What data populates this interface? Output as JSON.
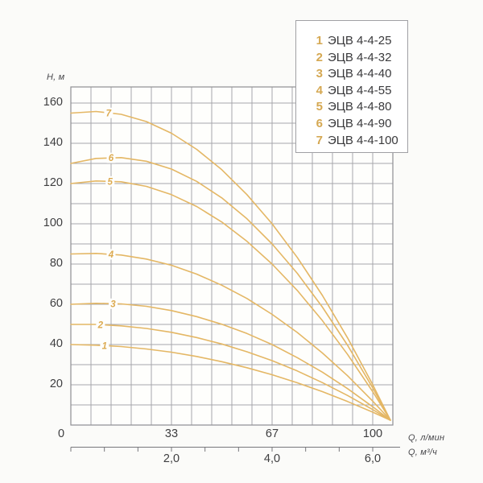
{
  "colors": {
    "background": "#fbfbf9",
    "plot_fill": "#fefefc",
    "curve": "#e4b765",
    "curve_label": "#dcaa50",
    "grid": "#a6a6ab",
    "frame": "#8e8e93",
    "axis_line": "#77777c",
    "text": "#3e3e40",
    "legend_number": "#d5a852",
    "legend_border": "#a0a0a4"
  },
  "legend": {
    "items": [
      {
        "num": "1",
        "name": "ЭЦВ 4-4-25"
      },
      {
        "num": "2",
        "name": "ЭЦВ 4-4-32"
      },
      {
        "num": "3",
        "name": "ЭЦВ 4-4-40"
      },
      {
        "num": "4",
        "name": "ЭЦВ 4-4-55"
      },
      {
        "num": "5",
        "name": "ЭЦВ 4-4-80"
      },
      {
        "num": "6",
        "name": "ЭЦВ 4-4-90"
      },
      {
        "num": "7",
        "name": "ЭЦВ 4-4-100"
      }
    ]
  },
  "chart_data": {
    "type": "line",
    "title": "",
    "ylabel": "H, м",
    "xlabel_primary": "Q, л/мин",
    "xlabel_secondary": "Q, м³/ч",
    "xlim_m3h": [
      0,
      6.4
    ],
    "ylim": [
      0,
      168
    ],
    "grid": "on",
    "grid_step_x_m3h": 0.4,
    "grid_step_y_m": 10,
    "legend_position": "top-right",
    "y_axis": {
      "unit": "H, м",
      "tick_labels": [
        "20",
        "40",
        "60",
        "80",
        "100",
        "120",
        "140",
        "160"
      ],
      "tick_values": [
        20,
        40,
        60,
        80,
        100,
        120,
        140,
        160
      ]
    },
    "x_primary": {
      "unit": "Q, л/мин",
      "tick_labels": [
        "0",
        "33",
        "67",
        "100"
      ],
      "tick_values_lmin": [
        0,
        33,
        67,
        100
      ]
    },
    "x_secondary": {
      "unit": "Q, м³/ч",
      "tick_labels": [
        "2,0",
        "4,0",
        "6,0"
      ],
      "tick_values_m3h": [
        2,
        4,
        6
      ],
      "minor_tick_step_m3h": 0.6667,
      "minor_tick_count": 10
    },
    "series": [
      {
        "label": "1",
        "name": "ЭЦВ 4-4-25",
        "label_q": 0.67,
        "points": [
          [
            0,
            40
          ],
          [
            0.5,
            39.7
          ],
          [
            1,
            39.0
          ],
          [
            1.5,
            37.8
          ],
          [
            2,
            36.2
          ],
          [
            2.5,
            34.1
          ],
          [
            3,
            31.5
          ],
          [
            3.5,
            28.5
          ],
          [
            4,
            25.0
          ],
          [
            4.5,
            21.0
          ],
          [
            5,
            16.6
          ],
          [
            5.5,
            11.7
          ],
          [
            6,
            6.4
          ],
          [
            6.35,
            2.4
          ]
        ]
      },
      {
        "label": "2",
        "name": "ЭЦВ 4-4-32",
        "label_q": 0.59,
        "points": [
          [
            0,
            50
          ],
          [
            0.5,
            50.0
          ],
          [
            1,
            49.3
          ],
          [
            1.5,
            48.0
          ],
          [
            2,
            46.1
          ],
          [
            2.5,
            43.5
          ],
          [
            3,
            40.3
          ],
          [
            3.5,
            36.4
          ],
          [
            4,
            32.0
          ],
          [
            4.5,
            26.9
          ],
          [
            5,
            21.1
          ],
          [
            5.5,
            14.7
          ],
          [
            6,
            7.7
          ],
          [
            6.35,
            2.4
          ]
        ]
      },
      {
        "label": "3",
        "name": "ЭЦВ 4-4-40",
        "label_q": 0.84,
        "points": [
          [
            0,
            60
          ],
          [
            0.5,
            60.5
          ],
          [
            1,
            60.2
          ],
          [
            1.5,
            59.0
          ],
          [
            2,
            56.9
          ],
          [
            2.5,
            53.9
          ],
          [
            3,
            50.1
          ],
          [
            3.5,
            45.5
          ],
          [
            4,
            40.0
          ],
          [
            4.5,
            33.5
          ],
          [
            5,
            26.3
          ],
          [
            5.5,
            18.1
          ],
          [
            6,
            9.1
          ],
          [
            6.35,
            2.4
          ]
        ]
      },
      {
        "label": "4",
        "name": "ЭЦВ 4-4-55",
        "label_q": 0.8,
        "points": [
          [
            0,
            85
          ],
          [
            0.5,
            85.3
          ],
          [
            1,
            84.5
          ],
          [
            1.5,
            82.5
          ],
          [
            2,
            79.4
          ],
          [
            2.5,
            75.0
          ],
          [
            3,
            69.5
          ],
          [
            3.5,
            62.9
          ],
          [
            4,
            55.0
          ],
          [
            4.5,
            46.0
          ],
          [
            5,
            35.8
          ],
          [
            5.5,
            24.5
          ],
          [
            6,
            11.9
          ],
          [
            6.35,
            2.5
          ]
        ]
      },
      {
        "label": "5",
        "name": "ЭЦВ 4-4-80",
        "label_q": 0.78,
        "points": [
          [
            0,
            120
          ],
          [
            0.5,
            121.3
          ],
          [
            1,
            120.9
          ],
          [
            1.5,
            118.6
          ],
          [
            2,
            114.5
          ],
          [
            2.5,
            108.6
          ],
          [
            3,
            100.9
          ],
          [
            3.5,
            91.3
          ],
          [
            4,
            80.0
          ],
          [
            4.5,
            66.9
          ],
          [
            5,
            51.9
          ],
          [
            5.5,
            35.1
          ],
          [
            6,
            16.6
          ],
          [
            6.35,
            2.5
          ]
        ]
      },
      {
        "label": "6",
        "name": "ЭЦВ 4-4-90",
        "label_q": 0.8,
        "points": [
          [
            0,
            130
          ],
          [
            0.5,
            132.5
          ],
          [
            1,
            132.9
          ],
          [
            1.5,
            131.1
          ],
          [
            2,
            127.2
          ],
          [
            2.5,
            121.1
          ],
          [
            3,
            112.9
          ],
          [
            3.5,
            102.5
          ],
          [
            4,
            90.0
          ],
          [
            4.5,
            75.4
          ],
          [
            5,
            58.6
          ],
          [
            5.5,
            39.6
          ],
          [
            6,
            18.5
          ],
          [
            6.35,
            2.5
          ]
        ]
      },
      {
        "label": "7",
        "name": "ЭЦВ 4-4-100",
        "label_q": 0.75,
        "points": [
          [
            0,
            155
          ],
          [
            0.5,
            155.8
          ],
          [
            1,
            154.4
          ],
          [
            1.5,
            150.8
          ],
          [
            2,
            145.0
          ],
          [
            2.5,
            137.0
          ],
          [
            3,
            126.9
          ],
          [
            3.5,
            114.5
          ],
          [
            4,
            100.0
          ],
          [
            4.5,
            83.3
          ],
          [
            5,
            64.4
          ],
          [
            5.5,
            43.3
          ],
          [
            6,
            20.1
          ],
          [
            6.35,
            2.5
          ]
        ]
      }
    ]
  }
}
